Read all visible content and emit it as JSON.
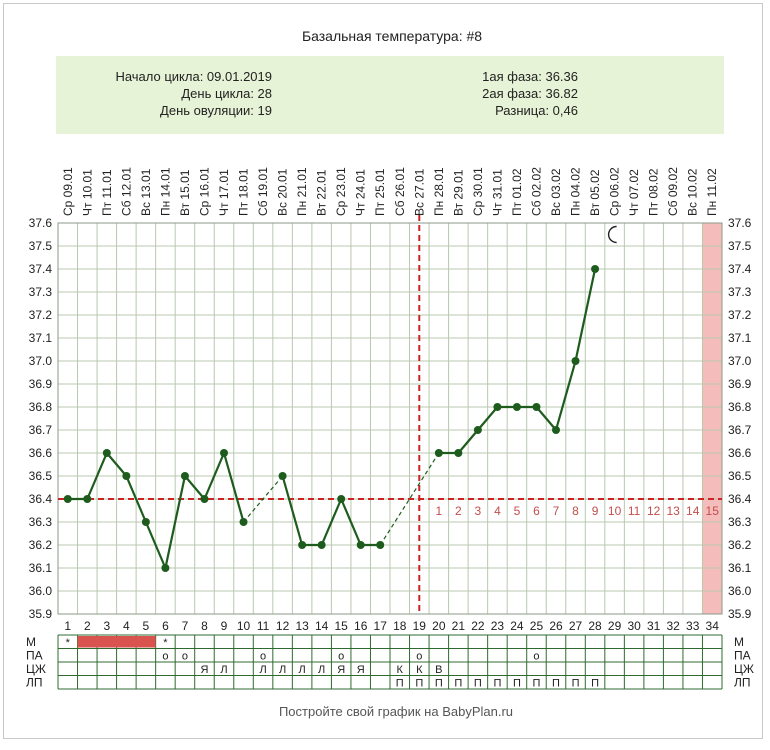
{
  "chart_data": {
    "type": "line",
    "title": "Базальная температура: #8",
    "info": {
      "cycle_start": "Начало цикла: 09.01.2019",
      "cycle_day": "День цикла: 28",
      "ovulation_day": "День овуляции: 19",
      "phase1": "1ая фаза: 36.36",
      "phase2": "2ая фаза: 36.82",
      "difference": "Разница: 0,46"
    },
    "dates": [
      "Ср 09.01",
      "Чт 10.01",
      "Пт 11.01",
      "Сб 12.01",
      "Вс 13.01",
      "Пн 14.01",
      "Вт 15.01",
      "Ср 16.01",
      "Чт 17.01",
      "Пт 18.01",
      "Сб 19.01",
      "Вс 20.01",
      "Пн 21.01",
      "Вт 22.01",
      "Ср 23.01",
      "Чт 24.01",
      "Пт 25.01",
      "Сб 26.01",
      "Вс 27.01",
      "Пн 28.01",
      "Вт 29.01",
      "Ср 30.01",
      "Чт 31.01",
      "Пт 01.02",
      "Сб 02.02",
      "Вс 03.02",
      "Пн 04.02",
      "Вт 05.02",
      "Ср 06.02",
      "Чт 07.02",
      "Пт 08.02",
      "Сб 09.02",
      "Вс 10.02",
      "Пн 11.02"
    ],
    "days": [
      "1",
      "2",
      "3",
      "4",
      "5",
      "6",
      "7",
      "8",
      "9",
      "10",
      "11",
      "12",
      "13",
      "14",
      "15",
      "16",
      "17",
      "18",
      "19",
      "20",
      "21",
      "22",
      "23",
      "24",
      "25",
      "26",
      "27",
      "28",
      "29",
      "30",
      "31",
      "32",
      "33",
      "34"
    ],
    "series": [
      {
        "values": [
          36.4,
          36.4,
          36.6,
          36.5,
          36.3,
          36.1,
          36.5,
          36.4,
          36.6,
          36.3,
          null,
          36.5,
          36.2,
          36.2,
          36.4,
          36.2,
          36.2,
          null,
          null,
          36.6,
          36.6,
          36.7,
          36.8,
          36.8,
          36.8,
          36.7,
          37.0,
          37.4,
          null,
          null,
          null,
          null,
          null,
          null
        ]
      }
    ],
    "yticks": [
      "37.6",
      "37.5",
      "37.4",
      "37.3",
      "37.2",
      "37.1",
      "37.0",
      "36.9",
      "36.8",
      "36.7",
      "36.6",
      "36.5",
      "36.4",
      "36.3",
      "36.2",
      "36.1",
      "36.0",
      "35.9"
    ],
    "ylim": [
      35.9,
      37.6
    ],
    "coverline": 36.4,
    "ovulation_day_index": 19,
    "highlight_day": 34,
    "phase_days": [
      "1",
      "2",
      "3",
      "4",
      "5",
      "6",
      "7",
      "8",
      "9",
      "10",
      "11",
      "12",
      "13",
      "14",
      "15"
    ],
    "phase_start_day": 20,
    "grid": true,
    "moon_day": 29,
    "moon_value": 37.55,
    "moon_icon": "crescent-moon-icon",
    "colors": {
      "line": "#1e5c1e",
      "coverline": "#cc2222",
      "highlight": "#f5bcbc",
      "period_bar": "#d9534f",
      "info_bg": "#e7f3d6",
      "grid": "#b8c8b0"
    },
    "extra_rows": {
      "labels": [
        "М",
        "ПА",
        "ЦЖ",
        "ЛП"
      ],
      "M": [
        {
          "day": 1,
          "symbol": "*"
        },
        {
          "day": 6,
          "symbol": "*"
        }
      ],
      "M_bar": {
        "from_day": 2,
        "to_day": 5
      },
      "PA": [
        {
          "day": 6,
          "symbol": "o"
        },
        {
          "day": 7,
          "symbol": "o"
        },
        {
          "day": 11,
          "symbol": "o"
        },
        {
          "day": 15,
          "symbol": "o"
        },
        {
          "day": 19,
          "symbol": "o"
        },
        {
          "day": 25,
          "symbol": "o"
        }
      ],
      "CZH": [
        {
          "day": 8,
          "symbol": "Я"
        },
        {
          "day": 9,
          "symbol": "Л"
        },
        {
          "day": 11,
          "symbol": "Л"
        },
        {
          "day": 12,
          "symbol": "Л"
        },
        {
          "day": 13,
          "symbol": "Л"
        },
        {
          "day": 14,
          "symbol": "Л"
        },
        {
          "day": 15,
          "symbol": "Я"
        },
        {
          "day": 16,
          "symbol": "Я"
        },
        {
          "day": 18,
          "symbol": "К"
        },
        {
          "day": 19,
          "symbol": "К"
        },
        {
          "day": 20,
          "symbol": "В"
        }
      ],
      "LP": [
        {
          "day": 18,
          "symbol": "П"
        },
        {
          "day": 19,
          "symbol": "П"
        },
        {
          "day": 20,
          "symbol": "П"
        },
        {
          "day": 21,
          "symbol": "П"
        },
        {
          "day": 22,
          "symbol": "П"
        },
        {
          "day": 23,
          "symbol": "П"
        },
        {
          "day": 24,
          "symbol": "П"
        },
        {
          "day": 25,
          "symbol": "П"
        },
        {
          "day": 26,
          "symbol": "П"
        },
        {
          "day": 27,
          "symbol": "П"
        },
        {
          "day": 28,
          "symbol": "П"
        }
      ]
    },
    "footer": "Постройте свой график на BabyPlan.ru"
  }
}
